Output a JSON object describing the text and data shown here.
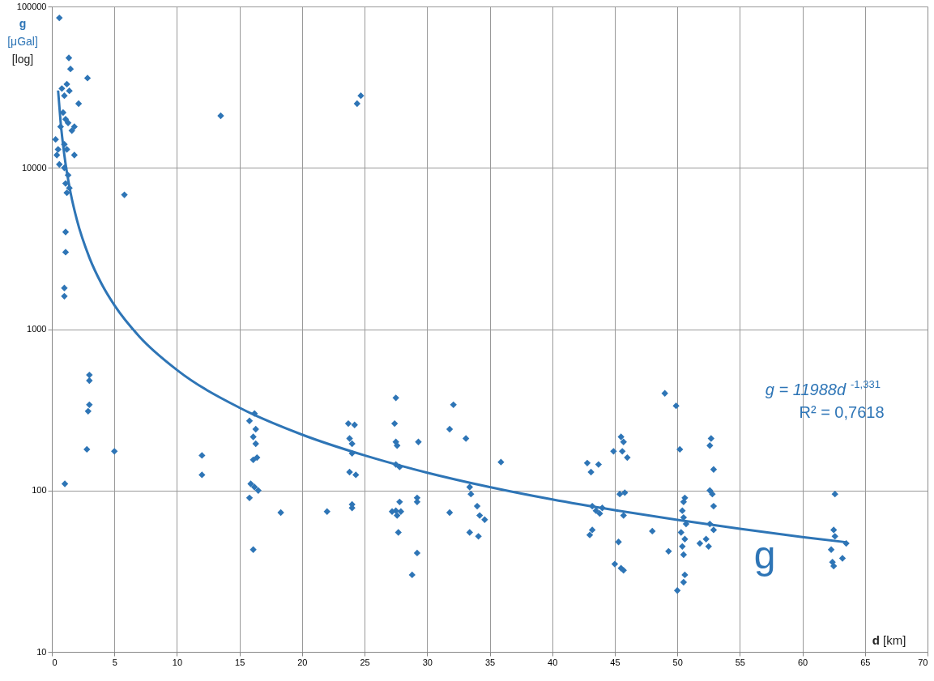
{
  "chart_data": {
    "type": "scatter",
    "xlabel": "d [km]",
    "ylabel": "g [μGal] [log]",
    "xlim": [
      0,
      70
    ],
    "xticks": [
      0,
      5,
      10,
      15,
      20,
      25,
      30,
      35,
      40,
      45,
      50,
      55,
      60,
      65,
      70
    ],
    "ylim": [
      10,
      100000
    ],
    "yticks": [
      10,
      100,
      1000,
      10000,
      100000
    ],
    "log": "y",
    "grid": true,
    "marker": "diamond",
    "annotations": [
      "g = 11988d$^{-1,331}$",
      "R² = 0,7618",
      "g"
    ],
    "series": [
      {
        "type": "scatter",
        "color": "#2e75b6",
        "x": [
          0.6,
          1.36,
          1.49,
          2.85,
          2.14,
          0.8,
          1.0,
          1.2,
          1.4,
          0.9,
          1.1,
          0.7,
          1.3,
          1.6,
          1.8,
          0.3,
          0.5,
          0.4,
          1.0,
          1.2,
          1.8,
          0.6,
          1.0,
          1.3,
          1.1,
          1.4,
          1.2,
          1.1,
          1.1,
          1.0,
          1.0,
          1.04,
          13.5,
          24.4,
          24.7,
          5.8,
          3.0,
          3.0,
          3.0,
          2.9,
          2.8,
          5.0,
          12.0,
          12.0,
          15.8,
          16.2,
          16.3,
          16.1,
          16.3,
          16.1,
          16.4,
          15.9,
          16.2,
          16.5,
          15.8,
          16.1,
          18.3,
          22.0,
          23.7,
          24.2,
          23.8,
          24.0,
          24.0,
          23.8,
          24.3,
          24.0,
          24.0,
          27.5,
          27.4,
          27.5,
          27.6,
          27.5,
          27.8,
          27.5,
          27.8,
          27.2,
          27.6,
          27.9,
          27.7,
          28.8,
          29.2,
          29.2,
          29.2,
          29.3,
          31.8,
          31.8,
          32.1,
          33.1,
          33.4,
          33.5,
          34.0,
          34.2,
          33.4,
          34.1,
          34.6,
          35.9,
          42.8,
          43.1,
          43.7,
          43.2,
          43.5,
          43.8,
          44.0,
          43.2,
          43.0,
          44.9,
          45.5,
          45.7,
          45.6,
          46.0,
          45.4,
          45.8,
          45.7,
          45.3,
          45.0,
          45.5,
          45.7,
          48.0,
          49.0,
          49.3,
          49.9,
          50.2,
          50.6,
          50.5,
          50.4,
          50.5,
          50.7,
          50.3,
          50.6,
          50.4,
          50.5,
          50.6,
          50.5,
          50.0,
          51.8,
          52.3,
          52.7,
          52.6,
          52.9,
          52.6,
          52.8,
          52.9,
          52.6,
          52.9,
          52.5,
          62.6,
          62.5,
          62.6,
          62.3,
          62.4,
          62.5,
          63.2,
          63.5
        ],
        "values": [
          85000,
          48000,
          41000,
          36000,
          25000,
          31000,
          28000,
          33000,
          30000,
          22000,
          20000,
          18000,
          19000,
          17000,
          18000,
          15000,
          13000,
          12000,
          14000,
          13000,
          12000,
          10500,
          10000,
          9000,
          8000,
          7500,
          7000,
          4000,
          3000,
          1800,
          1600,
          110,
          21000,
          25000,
          28000,
          6800,
          520,
          480,
          340,
          310,
          180,
          175,
          165,
          125,
          270,
          300,
          240,
          215,
          195,
          155,
          160,
          110,
          105,
          100,
          90,
          43,
          73,
          74,
          260,
          255,
          210,
          195,
          170,
          130,
          125,
          82,
          78,
          375,
          260,
          200,
          190,
          145,
          140,
          75,
          85,
          74,
          70,
          74,
          55,
          30,
          41,
          85,
          90,
          200,
          73,
          240,
          340,
          210,
          105,
          95,
          80,
          70,
          55,
          52,
          66,
          150,
          148,
          130,
          145,
          80,
          75,
          72,
          78,
          57,
          53,
          175,
          215,
          200,
          175,
          160,
          95,
          97,
          70,
          48,
          35,
          33,
          32,
          56,
          400,
          42,
          335,
          180,
          90,
          85,
          75,
          68,
          62,
          55,
          50,
          45,
          40,
          30,
          27,
          24,
          47,
          50,
          210,
          190,
          135,
          100,
          95,
          80,
          62,
          57,
          45,
          95,
          57,
          52,
          43,
          36,
          34,
          38,
          47
        ]
      },
      {
        "type": "line",
        "color": "#2e75b6",
        "marker": "none",
        "x": [
          0.5,
          0.7,
          1,
          1.5,
          2,
          3,
          4,
          5,
          7,
          10,
          15,
          20,
          25,
          30,
          35,
          40,
          45,
          50,
          55,
          60,
          63.5
        ],
        "values": [
          30150,
          19270,
          11988,
          6989,
          4765,
          2778,
          1894,
          1408,
          899,
          559,
          326,
          222,
          165,
          129,
          105,
          88,
          75.5,
          65.7,
          57.9,
          51.5,
          47.8
        ]
      }
    ]
  }
}
